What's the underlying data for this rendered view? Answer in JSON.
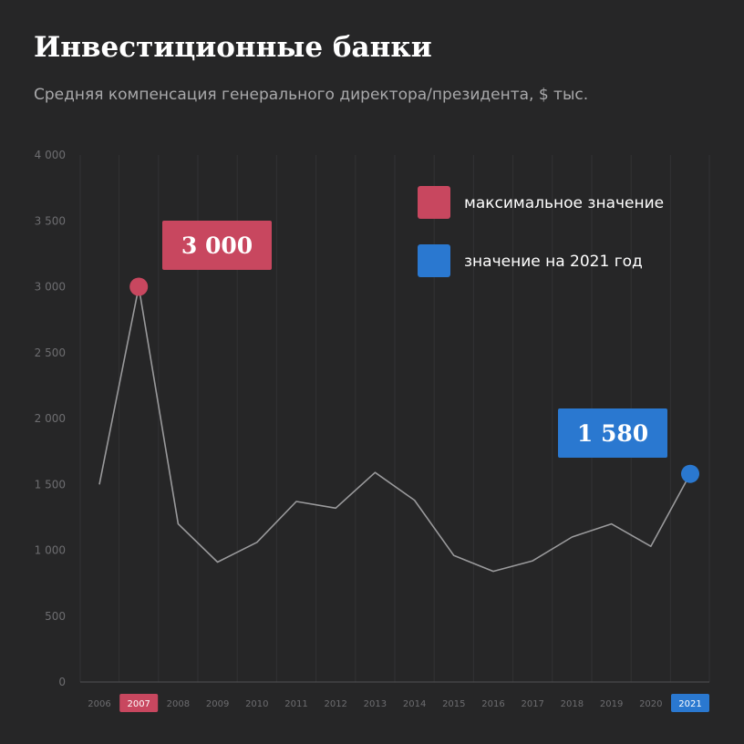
{
  "header": {
    "title": "Инвестиционные банки",
    "subtitle": "Средняя компенсация генерального директора/президента, $ тыс."
  },
  "colors": {
    "background": "#262627",
    "line": "#9a9a9c",
    "grid": "#323234",
    "axis": "#4a4a4c",
    "max": "#c8475f",
    "current": "#2a78d0"
  },
  "chart_data": {
    "type": "line",
    "x": [
      "2006",
      "2007",
      "2008",
      "2009",
      "2010",
      "2011",
      "2012",
      "2013",
      "2014",
      "2015",
      "2016",
      "2017",
      "2018",
      "2019",
      "2020",
      "2021"
    ],
    "series": [
      {
        "values": [
          1500,
          3000,
          1200,
          910,
          1060,
          1370,
          1320,
          1590,
          1380,
          960,
          840,
          920,
          1100,
          1200,
          1030,
          1580
        ]
      }
    ],
    "ylim": [
      0,
      4000
    ],
    "yticks": [
      0,
      500,
      1000,
      1500,
      2000,
      2500,
      3000,
      3500,
      4000
    ],
    "ytick_labels": [
      "0",
      "500",
      "1 000",
      "1 500",
      "2 000",
      "2 500",
      "3 000",
      "3 500",
      "4 000"
    ],
    "grid": true,
    "legend_position": "top-right",
    "legend": [
      {
        "label": "максимальное значение",
        "color": "#c8475f"
      },
      {
        "label": "значение на 2021 год",
        "color": "#2a78d0"
      }
    ],
    "annotations": [
      {
        "x": "2007",
        "value": 3000,
        "label": "3 000",
        "color": "#c8475f"
      },
      {
        "x": "2021",
        "value": 1580,
        "label": "1 580",
        "color": "#2a78d0"
      }
    ]
  }
}
